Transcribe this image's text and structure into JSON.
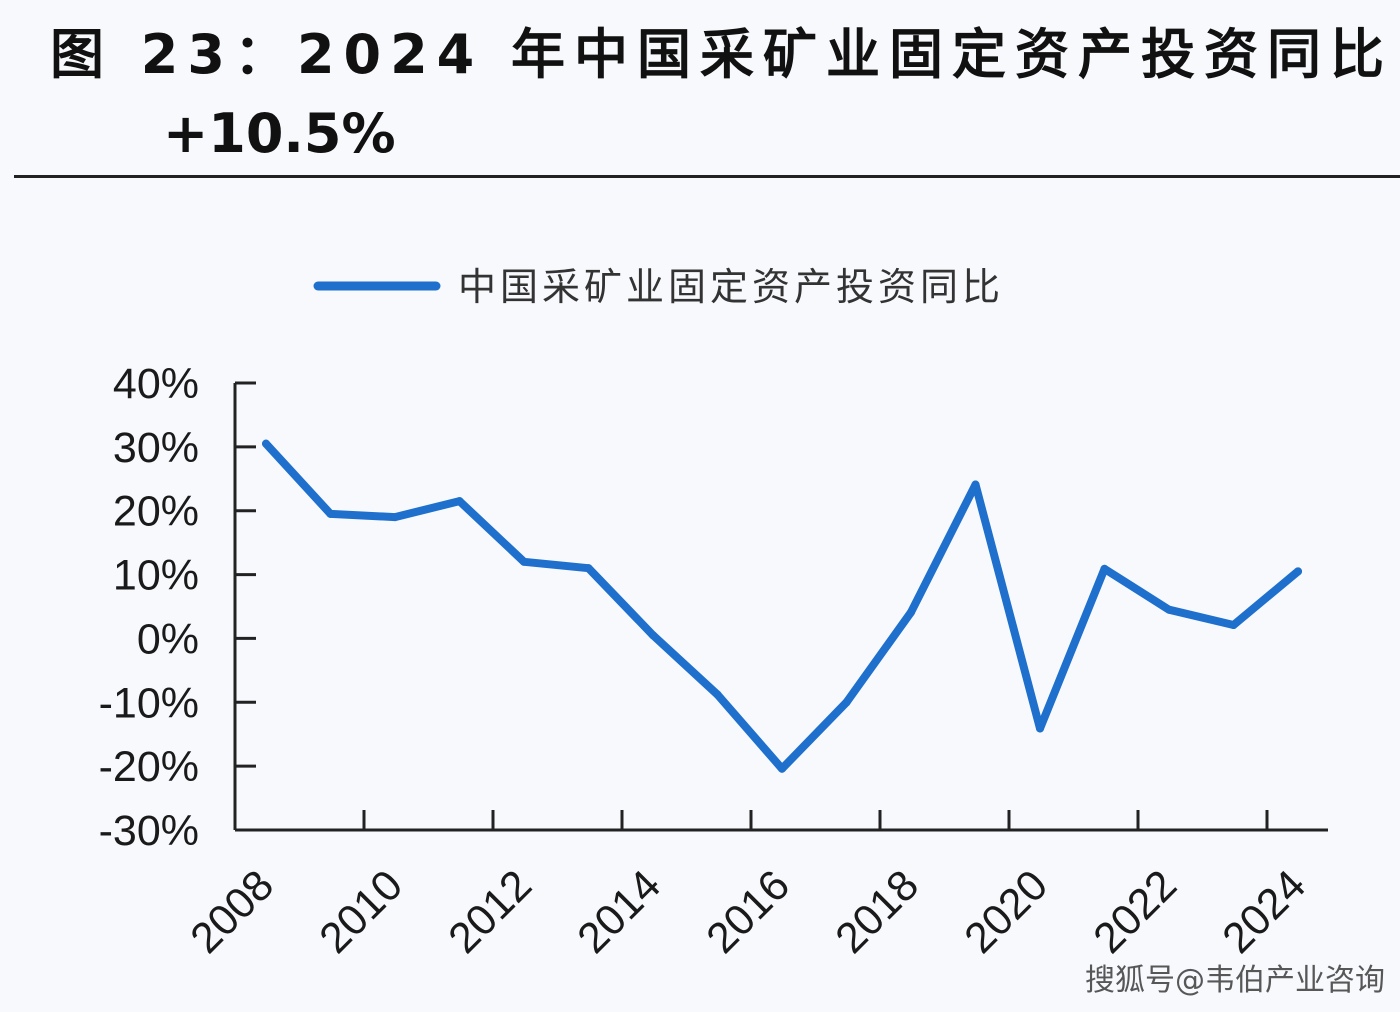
{
  "title": {
    "line1": "图 23：2024 年中国采矿业固定资产投资同比",
    "line2": "+10.5%"
  },
  "watermark": "搜狐号@韦伯产业咨询",
  "colors": {
    "series": "#1f6fcc",
    "axis": "#222222",
    "background": "#f7f9fd"
  },
  "chart_data": {
    "type": "line",
    "title": "图 23：2024 年中国采矿业固定资产投资同比 +10.5%",
    "xlabel": "",
    "ylabel": "",
    "x": [
      2008,
      2009,
      2010,
      2011,
      2012,
      2013,
      2014,
      2015,
      2016,
      2017,
      2018,
      2019,
      2020,
      2021,
      2022,
      2023,
      2024
    ],
    "x_tick_labels": [
      "2008",
      "2010",
      "2012",
      "2014",
      "2016",
      "2018",
      "2020",
      "2022",
      "2024"
    ],
    "y_tick_labels": [
      "40%",
      "30%",
      "20%",
      "10%",
      "0%",
      "-10%",
      "-20%",
      "-30%"
    ],
    "ylim": [
      -30,
      40
    ],
    "y_unit": "%",
    "grid": false,
    "legend_position": "top-center",
    "series": [
      {
        "name": "中国采矿业固定资产投资同比",
        "values": [
          30.5,
          19.5,
          19.0,
          21.5,
          12.0,
          11.0,
          0.5,
          -8.8,
          -20.4,
          -10.0,
          4.1,
          24.1,
          -14.1,
          10.9,
          4.5,
          2.1,
          10.5
        ]
      }
    ]
  }
}
